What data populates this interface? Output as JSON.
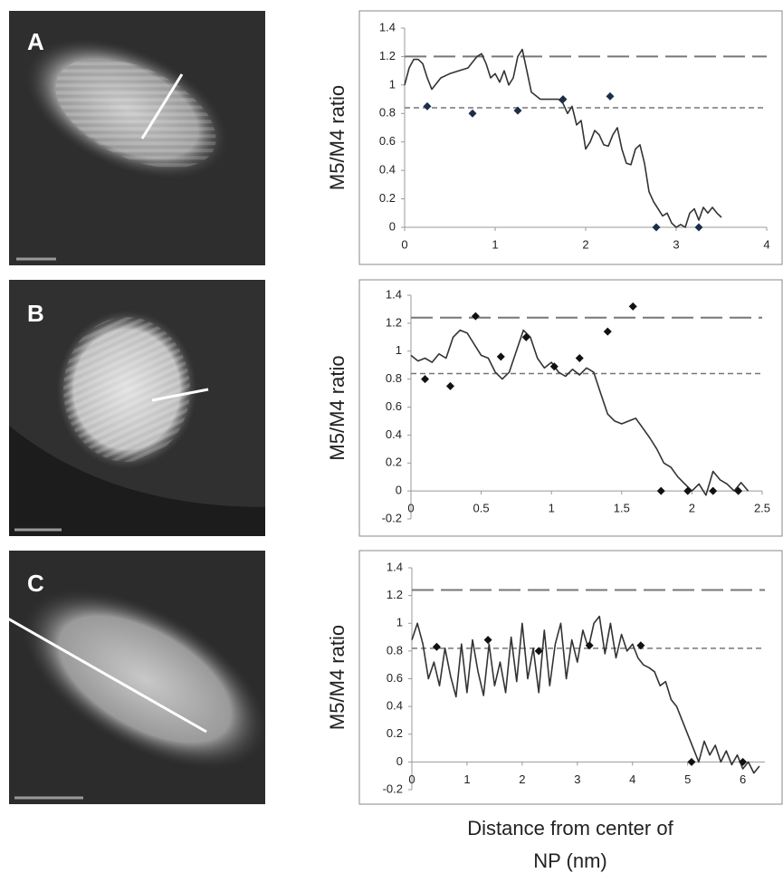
{
  "chart_data": [
    {
      "type": "line",
      "panel_label": "A",
      "y_label": "M5/M4 ratio",
      "xlim": [
        0,
        4
      ],
      "ylim": [
        0,
        1.4
      ],
      "xticks": [
        0,
        1,
        2,
        3,
        4
      ],
      "yticks": [
        0,
        0.2,
        0.4,
        0.6,
        0.8,
        1,
        1.2,
        1.4
      ],
      "hlines": [
        {
          "value": 1.2,
          "dash": "long"
        },
        {
          "value": 0.84,
          "dash": "short"
        }
      ],
      "series": [
        {
          "color": "#333333",
          "marker": "none",
          "x": [
            0,
            0.05,
            0.1,
            0.15,
            0.2,
            0.25,
            0.3,
            0.4,
            0.5,
            0.6,
            0.7,
            0.8,
            0.85,
            0.9,
            0.95,
            1.0,
            1.05,
            1.1,
            1.15,
            1.2,
            1.25,
            1.3,
            1.35,
            1.4,
            1.5,
            1.6,
            1.7,
            1.75,
            1.8,
            1.85,
            1.9,
            1.95,
            2.0,
            2.05,
            2.1,
            2.15,
            2.2,
            2.25,
            2.3,
            2.35,
            2.4,
            2.45,
            2.5,
            2.55,
            2.6,
            2.65,
            2.7,
            2.75,
            2.8,
            2.85,
            2.9,
            2.95,
            3.0,
            3.05,
            3.1,
            3.15,
            3.2,
            3.25,
            3.3,
            3.35,
            3.4,
            3.45,
            3.5
          ],
          "values": [
            1.0,
            1.12,
            1.18,
            1.18,
            1.15,
            1.05,
            0.97,
            1.05,
            1.08,
            1.1,
            1.12,
            1.2,
            1.22,
            1.15,
            1.05,
            1.08,
            1.02,
            1.1,
            1.0,
            1.05,
            1.2,
            1.25,
            1.1,
            0.95,
            0.9,
            0.9,
            0.9,
            0.87,
            0.8,
            0.85,
            0.72,
            0.75,
            0.55,
            0.6,
            0.68,
            0.65,
            0.58,
            0.57,
            0.65,
            0.7,
            0.55,
            0.45,
            0.44,
            0.55,
            0.58,
            0.45,
            0.25,
            0.18,
            0.13,
            0.08,
            0.1,
            0.03,
            0.0,
            0.02,
            0.0,
            0.1,
            0.13,
            0.05,
            0.14,
            0.1,
            0.14,
            0.1,
            0.07
          ]
        },
        {
          "color": "#1c2e4a",
          "marker": "diamond",
          "x": [
            0.25,
            0.75,
            1.25,
            1.75,
            2.27,
            2.78,
            3.25
          ],
          "values": [
            0.85,
            0.8,
            0.82,
            0.9,
            0.92,
            0,
            0
          ]
        }
      ]
    },
    {
      "type": "line",
      "panel_label": "B",
      "y_label": "M5/M4 ratio",
      "xlim": [
        0,
        2.5
      ],
      "ylim": [
        -0.2,
        1.4
      ],
      "xticks": [
        0,
        0.5,
        1,
        1.5,
        2,
        2.5
      ],
      "yticks": [
        -0.2,
        0,
        0.2,
        0.4,
        0.6,
        0.8,
        1,
        1.2,
        1.4
      ],
      "hlines": [
        {
          "value": 1.24,
          "dash": "long"
        },
        {
          "value": 0.84,
          "dash": "short"
        }
      ],
      "series": [
        {
          "color": "#333333",
          "marker": "none",
          "x": [
            0,
            0.05,
            0.1,
            0.15,
            0.2,
            0.25,
            0.3,
            0.35,
            0.4,
            0.45,
            0.5,
            0.55,
            0.6,
            0.65,
            0.7,
            0.75,
            0.8,
            0.85,
            0.9,
            0.95,
            1.0,
            1.05,
            1.1,
            1.15,
            1.2,
            1.25,
            1.3,
            1.35,
            1.4,
            1.45,
            1.5,
            1.55,
            1.6,
            1.65,
            1.7,
            1.75,
            1.8,
            1.85,
            1.9,
            1.95,
            2.0,
            2.05,
            2.1,
            2.15,
            2.2,
            2.25,
            2.3,
            2.35,
            2.4
          ],
          "values": [
            0.97,
            0.93,
            0.95,
            0.92,
            0.98,
            0.95,
            1.1,
            1.15,
            1.13,
            1.05,
            0.97,
            0.95,
            0.85,
            0.8,
            0.85,
            1.0,
            1.15,
            1.1,
            0.95,
            0.88,
            0.92,
            0.85,
            0.82,
            0.87,
            0.83,
            0.88,
            0.85,
            0.7,
            0.55,
            0.5,
            0.48,
            0.5,
            0.52,
            0.45,
            0.38,
            0.3,
            0.2,
            0.17,
            0.1,
            0.05,
            0.0,
            0.05,
            -0.03,
            0.14,
            0.08,
            0.05,
            0.0,
            0.06,
            0.0
          ]
        },
        {
          "color": "#111111",
          "marker": "diamond",
          "x": [
            0.1,
            0.28,
            0.46,
            0.64,
            0.82,
            1.02,
            1.2,
            1.4,
            1.58,
            1.78,
            1.97,
            2.15,
            2.33
          ],
          "values": [
            0.8,
            0.75,
            1.25,
            0.96,
            1.1,
            0.89,
            0.95,
            1.14,
            1.32,
            0,
            0,
            0,
            0
          ]
        }
      ]
    },
    {
      "type": "line",
      "panel_label": "C",
      "y_label": "M5/M4 ratio",
      "x_label": "Distance from center of NP (nm)",
      "xlim": [
        0,
        6.4
      ],
      "ylim": [
        -0.2,
        1.4
      ],
      "xticks": [
        0,
        1,
        2,
        3,
        4,
        5,
        6
      ],
      "yticks": [
        -0.2,
        0,
        0.2,
        0.4,
        0.6,
        0.8,
        1,
        1.2,
        1.4
      ],
      "hlines": [
        {
          "value": 1.24,
          "dash": "long"
        },
        {
          "value": 0.82,
          "dash": "short"
        }
      ],
      "series": [
        {
          "color": "#333333",
          "marker": "none",
          "x": [
            0,
            0.1,
            0.2,
            0.3,
            0.4,
            0.5,
            0.6,
            0.7,
            0.8,
            0.9,
            1.0,
            1.1,
            1.2,
            1.3,
            1.4,
            1.5,
            1.6,
            1.7,
            1.8,
            1.9,
            2.0,
            2.1,
            2.2,
            2.3,
            2.4,
            2.5,
            2.6,
            2.7,
            2.8,
            2.9,
            3.0,
            3.1,
            3.2,
            3.3,
            3.4,
            3.5,
            3.6,
            3.7,
            3.8,
            3.9,
            4.0,
            4.1,
            4.2,
            4.3,
            4.4,
            4.5,
            4.6,
            4.7,
            4.8,
            4.9,
            5.0,
            5.1,
            5.2,
            5.3,
            5.4,
            5.5,
            5.6,
            5.7,
            5.8,
            5.9,
            6.0,
            6.1,
            6.2,
            6.3
          ],
          "values": [
            0.88,
            1.0,
            0.85,
            0.6,
            0.72,
            0.55,
            0.82,
            0.62,
            0.47,
            0.85,
            0.5,
            0.88,
            0.65,
            0.48,
            0.85,
            0.55,
            0.72,
            0.5,
            0.9,
            0.58,
            1.0,
            0.6,
            0.82,
            0.5,
            0.95,
            0.55,
            0.85,
            1.0,
            0.6,
            0.88,
            0.72,
            0.95,
            0.82,
            1.0,
            1.05,
            0.78,
            1.0,
            0.75,
            0.92,
            0.8,
            0.85,
            0.75,
            0.7,
            0.68,
            0.65,
            0.55,
            0.58,
            0.45,
            0.4,
            0.3,
            0.2,
            0.1,
            0.0,
            0.15,
            0.05,
            0.12,
            0.0,
            0.08,
            -0.02,
            0.05,
            -0.05,
            0.0,
            -0.08,
            -0.03
          ]
        },
        {
          "color": "#111111",
          "marker": "diamond",
          "x": [
            0.45,
            1.38,
            2.3,
            3.22,
            4.15,
            5.07,
            6.0
          ],
          "values": [
            0.83,
            0.88,
            0.8,
            0.84,
            0.84,
            0,
            0
          ]
        }
      ]
    }
  ]
}
